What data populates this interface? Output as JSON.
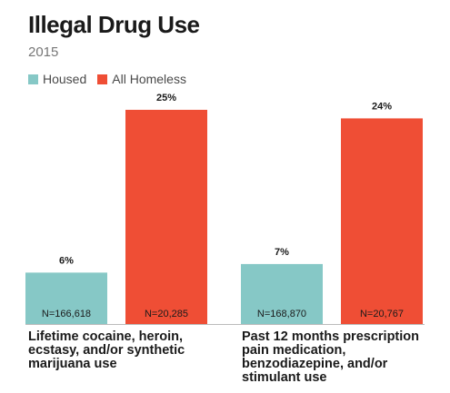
{
  "chart_data": {
    "type": "bar",
    "title": "Illegal Drug Use",
    "subtitle": "2015",
    "categories": [
      "Lifetime cocaine, heroin, ecstasy, and/or synthetic marijuana use",
      "Past 12 months prescription pain medication, benzodiazepine, and/or stimulant use"
    ],
    "series": [
      {
        "name": "Housed",
        "color": "#86c8c6",
        "values": [
          6,
          7
        ],
        "value_labels": [
          "6%",
          "7%"
        ],
        "n_labels": [
          "N=166,618",
          "N=168,870"
        ]
      },
      {
        "name": "All Homeless",
        "color": "#ef4e35",
        "values": [
          25,
          24
        ],
        "value_labels": [
          "25%",
          "24%"
        ],
        "n_labels": [
          "N=20,285",
          "N=20,767"
        ]
      }
    ],
    "ylim": [
      0,
      25
    ],
    "xlabel": "",
    "ylabel": "",
    "grid": false,
    "legend_position": "top-left"
  }
}
